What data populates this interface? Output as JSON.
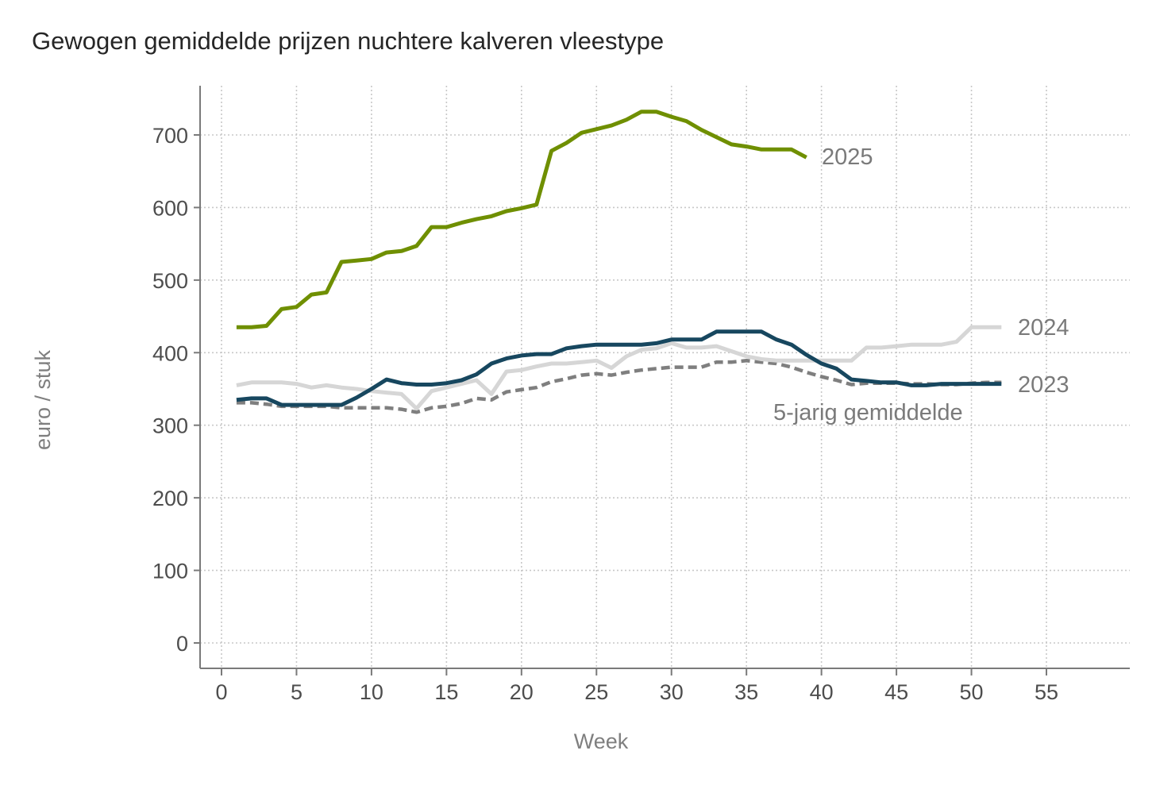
{
  "chart_data": {
    "type": "line",
    "title": "Gewogen gemiddelde prijzen nuchtere kalveren vleestype",
    "xlabel": "Week",
    "ylabel": "euro / stuk",
    "xlim": [
      -1.5,
      60
    ],
    "ylim": [
      -35,
      770
    ],
    "xticks": [
      0,
      5,
      10,
      15,
      20,
      25,
      30,
      35,
      40,
      45,
      50,
      55
    ],
    "yticks": [
      0,
      100,
      200,
      300,
      400,
      500,
      600,
      700
    ],
    "grid": true,
    "legend": "inline-labels-at-line-ends",
    "series": [
      {
        "name": "5-jarig gemiddelde",
        "label": "5-jarig gemiddelde",
        "color": "#7f7f7f",
        "dashed": true,
        "x": [
          1,
          2,
          3,
          4,
          5,
          6,
          7,
          8,
          9,
          10,
          11,
          12,
          13,
          14,
          15,
          16,
          17,
          18,
          19,
          20,
          21,
          22,
          23,
          24,
          25,
          26,
          27,
          28,
          29,
          30,
          31,
          32,
          33,
          34,
          35,
          36,
          37,
          38,
          39,
          40,
          41,
          42,
          43,
          44,
          45,
          46,
          47,
          48,
          49,
          50,
          51,
          52
        ],
        "values": [
          331,
          331,
          329,
          326,
          326,
          326,
          326,
          324,
          324,
          324,
          324,
          322,
          318,
          324,
          326,
          330,
          337,
          335,
          346,
          349,
          352,
          360,
          364,
          369,
          371,
          369,
          373,
          376,
          378,
          380,
          380,
          380,
          387,
          387,
          389,
          387,
          385,
          380,
          373,
          367,
          362,
          356,
          358,
          358,
          358,
          357,
          357,
          356,
          356,
          358,
          359,
          359
        ]
      },
      {
        "name": "2024",
        "label": "2024",
        "color": "#d6d6d6",
        "dashed": false,
        "x": [
          1,
          2,
          3,
          4,
          5,
          6,
          7,
          8,
          9,
          10,
          11,
          12,
          13,
          14,
          15,
          16,
          17,
          18,
          19,
          20,
          21,
          22,
          23,
          24,
          25,
          26,
          27,
          28,
          29,
          30,
          31,
          32,
          33,
          34,
          35,
          36,
          37,
          38,
          39,
          40,
          41,
          42,
          43,
          44,
          45,
          46,
          47,
          48,
          49,
          50,
          51,
          52
        ],
        "values": [
          355,
          359,
          359,
          359,
          357,
          352,
          355,
          352,
          350,
          347,
          345,
          343,
          323,
          347,
          352,
          357,
          362,
          343,
          374,
          376,
          381,
          385,
          385,
          387,
          389,
          379,
          395,
          404,
          406,
          413,
          407,
          407,
          409,
          402,
          395,
          391,
          389,
          389,
          389,
          389,
          389,
          389,
          407,
          407,
          409,
          411,
          411,
          411,
          415,
          435,
          435,
          435
        ]
      },
      {
        "name": "2023",
        "label": "2023",
        "color": "#17475f",
        "dashed": false,
        "x": [
          1,
          2,
          3,
          4,
          5,
          6,
          7,
          8,
          9,
          10,
          11,
          12,
          13,
          14,
          15,
          16,
          17,
          18,
          19,
          20,
          21,
          22,
          23,
          24,
          25,
          26,
          27,
          28,
          29,
          30,
          31,
          32,
          33,
          34,
          35,
          36,
          37,
          38,
          39,
          40,
          41,
          42,
          43,
          44,
          45,
          46,
          47,
          48,
          49,
          50,
          51,
          52
        ],
        "values": [
          335,
          337,
          337,
          328,
          328,
          328,
          328,
          328,
          338,
          350,
          363,
          358,
          356,
          356,
          358,
          362,
          370,
          385,
          392,
          396,
          398,
          398,
          406,
          409,
          411,
          411,
          411,
          411,
          413,
          418,
          418,
          418,
          429,
          429,
          429,
          429,
          418,
          411,
          397,
          385,
          378,
          363,
          361,
          359,
          359,
          355,
          355,
          357,
          357,
          357,
          357,
          357
        ]
      },
      {
        "name": "2025",
        "label": "2025",
        "color": "#6f8f00",
        "dashed": false,
        "x": [
          1,
          2,
          3,
          4,
          5,
          6,
          7,
          8,
          9,
          10,
          11,
          12,
          13,
          14,
          15,
          16,
          17,
          18,
          19,
          20,
          21,
          22,
          23,
          24,
          25,
          26,
          27,
          28,
          29,
          30,
          31,
          32,
          33,
          34,
          35,
          36,
          37,
          38,
          39
        ],
        "values": [
          435,
          435,
          437,
          460,
          463,
          480,
          483,
          525,
          527,
          529,
          538,
          540,
          547,
          573,
          573,
          579,
          584,
          588,
          595,
          599,
          604,
          678,
          689,
          703,
          708,
          713,
          721,
          732,
          732,
          725,
          719,
          707,
          697,
          687,
          684,
          680,
          680,
          680,
          669
        ]
      }
    ]
  }
}
